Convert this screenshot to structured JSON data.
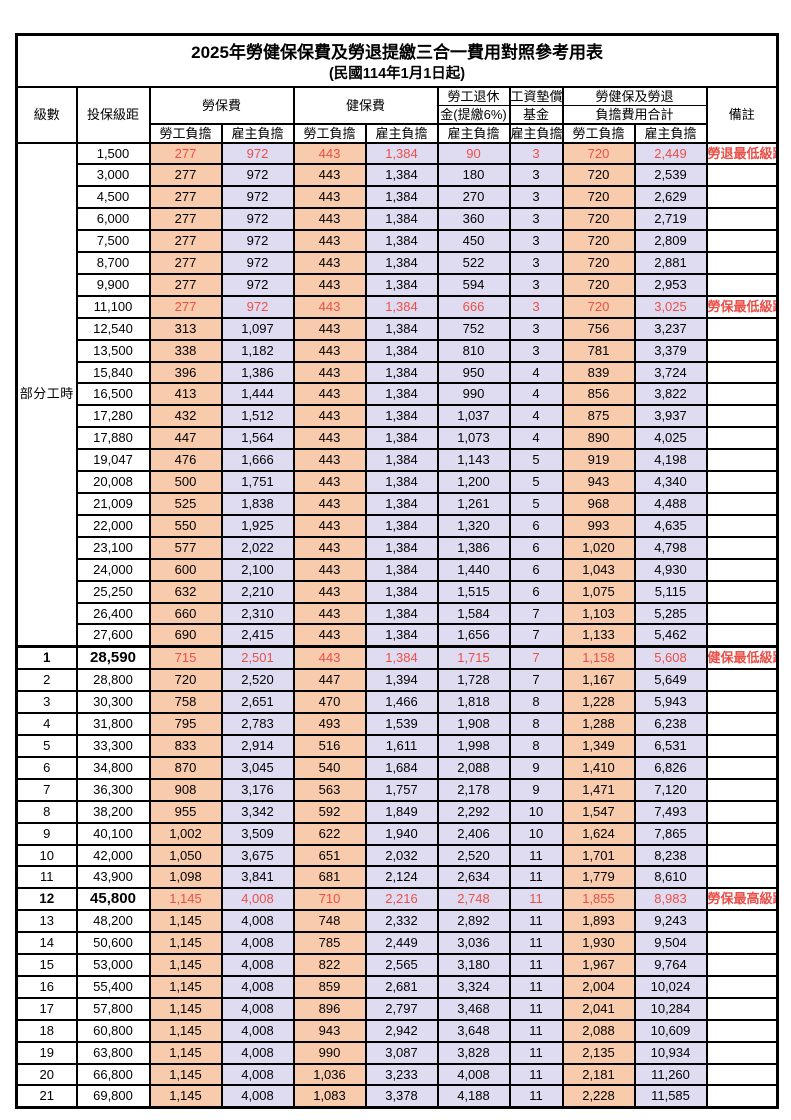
{
  "title": "2025年勞健保保費及勞退提繳三合一費用對照參考用表",
  "subtitle": "(民國114年1月1日起)",
  "colors": {
    "employee_bg": "#F8CBAD",
    "employer_bg": "#DFDCF1",
    "highlight_red": "#EA4F48",
    "border": "#000000"
  },
  "header": {
    "level": "級數",
    "bracket": "投保級距",
    "labor_fee": "勞保費",
    "health_fee": "健保費",
    "pension_line1": "勞工退休",
    "pension_line2": "金(提繳6%)",
    "wage_fund_line1": "工資墊償",
    "wage_fund_line2": "基金",
    "total_line1": "勞健保及勞退",
    "total_line2": "負擔費用合計",
    "remark": "備註",
    "employee": "勞工負擔",
    "employer": "雇主負擔",
    "part_time_label": "部分工時"
  },
  "chart_data": {
    "type": "table",
    "title": "2025年勞健保保費及勞退提繳三合一費用對照參考用表",
    "columns": [
      "級數",
      "投保級距",
      "勞保費-勞工負擔",
      "勞保費-雇主負擔",
      "健保費-勞工負擔",
      "健保費-雇主負擔",
      "勞工退休金(提繳6%)-雇主負擔",
      "工資墊償基金-雇主負擔",
      "合計-勞工負擔",
      "合計-雇主負擔",
      "備註"
    ]
  },
  "rows": [
    {
      "level": null,
      "bracket": "1,500",
      "values": [
        "277",
        "972",
        "443",
        "1,384",
        "90",
        "3",
        "720",
        "2,449"
      ],
      "red": true,
      "emph": false,
      "note": "勞退最低級距"
    },
    {
      "level": null,
      "bracket": "3,000",
      "values": [
        "277",
        "972",
        "443",
        "1,384",
        "180",
        "3",
        "720",
        "2,539"
      ],
      "red": false,
      "emph": false,
      "note": ""
    },
    {
      "level": null,
      "bracket": "4,500",
      "values": [
        "277",
        "972",
        "443",
        "1,384",
        "270",
        "3",
        "720",
        "2,629"
      ],
      "red": false,
      "emph": false,
      "note": ""
    },
    {
      "level": null,
      "bracket": "6,000",
      "values": [
        "277",
        "972",
        "443",
        "1,384",
        "360",
        "3",
        "720",
        "2,719"
      ],
      "red": false,
      "emph": false,
      "note": ""
    },
    {
      "level": null,
      "bracket": "7,500",
      "values": [
        "277",
        "972",
        "443",
        "1,384",
        "450",
        "3",
        "720",
        "2,809"
      ],
      "red": false,
      "emph": false,
      "note": ""
    },
    {
      "level": null,
      "bracket": "8,700",
      "values": [
        "277",
        "972",
        "443",
        "1,384",
        "522",
        "3",
        "720",
        "2,881"
      ],
      "red": false,
      "emph": false,
      "note": ""
    },
    {
      "level": null,
      "bracket": "9,900",
      "values": [
        "277",
        "972",
        "443",
        "1,384",
        "594",
        "3",
        "720",
        "2,953"
      ],
      "red": false,
      "emph": false,
      "note": ""
    },
    {
      "level": null,
      "bracket": "11,100",
      "values": [
        "277",
        "972",
        "443",
        "1,384",
        "666",
        "3",
        "720",
        "3,025"
      ],
      "red": true,
      "emph": false,
      "note": "勞保最低級距"
    },
    {
      "level": null,
      "bracket": "12,540",
      "values": [
        "313",
        "1,097",
        "443",
        "1,384",
        "752",
        "3",
        "756",
        "3,237"
      ],
      "red": false,
      "emph": false,
      "note": ""
    },
    {
      "level": null,
      "bracket": "13,500",
      "values": [
        "338",
        "1,182",
        "443",
        "1,384",
        "810",
        "3",
        "781",
        "3,379"
      ],
      "red": false,
      "emph": false,
      "note": ""
    },
    {
      "level": null,
      "bracket": "15,840",
      "values": [
        "396",
        "1,386",
        "443",
        "1,384",
        "950",
        "4",
        "839",
        "3,724"
      ],
      "red": false,
      "emph": false,
      "note": ""
    },
    {
      "level": null,
      "bracket": "16,500",
      "values": [
        "413",
        "1,444",
        "443",
        "1,384",
        "990",
        "4",
        "856",
        "3,822"
      ],
      "red": false,
      "emph": false,
      "note": ""
    },
    {
      "level": null,
      "bracket": "17,280",
      "values": [
        "432",
        "1,512",
        "443",
        "1,384",
        "1,037",
        "4",
        "875",
        "3,937"
      ],
      "red": false,
      "emph": false,
      "note": ""
    },
    {
      "level": null,
      "bracket": "17,880",
      "values": [
        "447",
        "1,564",
        "443",
        "1,384",
        "1,073",
        "4",
        "890",
        "4,025"
      ],
      "red": false,
      "emph": false,
      "note": ""
    },
    {
      "level": null,
      "bracket": "19,047",
      "values": [
        "476",
        "1,666",
        "443",
        "1,384",
        "1,143",
        "5",
        "919",
        "4,198"
      ],
      "red": false,
      "emph": false,
      "note": ""
    },
    {
      "level": null,
      "bracket": "20,008",
      "values": [
        "500",
        "1,751",
        "443",
        "1,384",
        "1,200",
        "5",
        "943",
        "4,340"
      ],
      "red": false,
      "emph": false,
      "note": ""
    },
    {
      "level": null,
      "bracket": "21,009",
      "values": [
        "525",
        "1,838",
        "443",
        "1,384",
        "1,261",
        "5",
        "968",
        "4,488"
      ],
      "red": false,
      "emph": false,
      "note": ""
    },
    {
      "level": null,
      "bracket": "22,000",
      "values": [
        "550",
        "1,925",
        "443",
        "1,384",
        "1,320",
        "6",
        "993",
        "4,635"
      ],
      "red": false,
      "emph": false,
      "note": ""
    },
    {
      "level": null,
      "bracket": "23,100",
      "values": [
        "577",
        "2,022",
        "443",
        "1,384",
        "1,386",
        "6",
        "1,020",
        "4,798"
      ],
      "red": false,
      "emph": false,
      "note": ""
    },
    {
      "level": null,
      "bracket": "24,000",
      "values": [
        "600",
        "2,100",
        "443",
        "1,384",
        "1,440",
        "6",
        "1,043",
        "4,930"
      ],
      "red": false,
      "emph": false,
      "note": ""
    },
    {
      "level": null,
      "bracket": "25,250",
      "values": [
        "632",
        "2,210",
        "443",
        "1,384",
        "1,515",
        "6",
        "1,075",
        "5,115"
      ],
      "red": false,
      "emph": false,
      "note": ""
    },
    {
      "level": null,
      "bracket": "26,400",
      "values": [
        "660",
        "2,310",
        "443",
        "1,384",
        "1,584",
        "7",
        "1,103",
        "5,285"
      ],
      "red": false,
      "emph": false,
      "note": ""
    },
    {
      "level": null,
      "bracket": "27,600",
      "values": [
        "690",
        "2,415",
        "443",
        "1,384",
        "1,656",
        "7",
        "1,133",
        "5,462"
      ],
      "red": false,
      "emph": false,
      "note": ""
    },
    {
      "level": "1",
      "bracket": "28,590",
      "values": [
        "715",
        "2,501",
        "443",
        "1,384",
        "1,715",
        "7",
        "1,158",
        "5,608"
      ],
      "red": true,
      "emph": true,
      "note": "健保最低級距"
    },
    {
      "level": "2",
      "bracket": "28,800",
      "values": [
        "720",
        "2,520",
        "447",
        "1,394",
        "1,728",
        "7",
        "1,167",
        "5,649"
      ],
      "red": false,
      "emph": false,
      "note": ""
    },
    {
      "level": "3",
      "bracket": "30,300",
      "values": [
        "758",
        "2,651",
        "470",
        "1,466",
        "1,818",
        "8",
        "1,228",
        "5,943"
      ],
      "red": false,
      "emph": false,
      "note": ""
    },
    {
      "level": "4",
      "bracket": "31,800",
      "values": [
        "795",
        "2,783",
        "493",
        "1,539",
        "1,908",
        "8",
        "1,288",
        "6,238"
      ],
      "red": false,
      "emph": false,
      "note": ""
    },
    {
      "level": "5",
      "bracket": "33,300",
      "values": [
        "833",
        "2,914",
        "516",
        "1,611",
        "1,998",
        "8",
        "1,349",
        "6,531"
      ],
      "red": false,
      "emph": false,
      "note": ""
    },
    {
      "level": "6",
      "bracket": "34,800",
      "values": [
        "870",
        "3,045",
        "540",
        "1,684",
        "2,088",
        "9",
        "1,410",
        "6,826"
      ],
      "red": false,
      "emph": false,
      "note": ""
    },
    {
      "level": "7",
      "bracket": "36,300",
      "values": [
        "908",
        "3,176",
        "563",
        "1,757",
        "2,178",
        "9",
        "1,471",
        "7,120"
      ],
      "red": false,
      "emph": false,
      "note": ""
    },
    {
      "level": "8",
      "bracket": "38,200",
      "values": [
        "955",
        "3,342",
        "592",
        "1,849",
        "2,292",
        "10",
        "1,547",
        "7,493"
      ],
      "red": false,
      "emph": false,
      "note": ""
    },
    {
      "level": "9",
      "bracket": "40,100",
      "values": [
        "1,002",
        "3,509",
        "622",
        "1,940",
        "2,406",
        "10",
        "1,624",
        "7,865"
      ],
      "red": false,
      "emph": false,
      "note": ""
    },
    {
      "level": "10",
      "bracket": "42,000",
      "values": [
        "1,050",
        "3,675",
        "651",
        "2,032",
        "2,520",
        "11",
        "1,701",
        "8,238"
      ],
      "red": false,
      "emph": false,
      "note": ""
    },
    {
      "level": "11",
      "bracket": "43,900",
      "values": [
        "1,098",
        "3,841",
        "681",
        "2,124",
        "2,634",
        "11",
        "1,779",
        "8,610"
      ],
      "red": false,
      "emph": false,
      "note": ""
    },
    {
      "level": "12",
      "bracket": "45,800",
      "values": [
        "1,145",
        "4,008",
        "710",
        "2,216",
        "2,748",
        "11",
        "1,855",
        "8,983"
      ],
      "red": true,
      "emph": true,
      "note": "勞保最高級距"
    },
    {
      "level": "13",
      "bracket": "48,200",
      "values": [
        "1,145",
        "4,008",
        "748",
        "2,332",
        "2,892",
        "11",
        "1,893",
        "9,243"
      ],
      "red": false,
      "emph": false,
      "note": ""
    },
    {
      "level": "14",
      "bracket": "50,600",
      "values": [
        "1,145",
        "4,008",
        "785",
        "2,449",
        "3,036",
        "11",
        "1,930",
        "9,504"
      ],
      "red": false,
      "emph": false,
      "note": ""
    },
    {
      "level": "15",
      "bracket": "53,000",
      "values": [
        "1,145",
        "4,008",
        "822",
        "2,565",
        "3,180",
        "11",
        "1,967",
        "9,764"
      ],
      "red": false,
      "emph": false,
      "note": ""
    },
    {
      "level": "16",
      "bracket": "55,400",
      "values": [
        "1,145",
        "4,008",
        "859",
        "2,681",
        "3,324",
        "11",
        "2,004",
        "10,024"
      ],
      "red": false,
      "emph": false,
      "note": ""
    },
    {
      "level": "17",
      "bracket": "57,800",
      "values": [
        "1,145",
        "4,008",
        "896",
        "2,797",
        "3,468",
        "11",
        "2,041",
        "10,284"
      ],
      "red": false,
      "emph": false,
      "note": ""
    },
    {
      "level": "18",
      "bracket": "60,800",
      "values": [
        "1,145",
        "4,008",
        "943",
        "2,942",
        "3,648",
        "11",
        "2,088",
        "10,609"
      ],
      "red": false,
      "emph": false,
      "note": ""
    },
    {
      "level": "19",
      "bracket": "63,800",
      "values": [
        "1,145",
        "4,008",
        "990",
        "3,087",
        "3,828",
        "11",
        "2,135",
        "10,934"
      ],
      "red": false,
      "emph": false,
      "note": ""
    },
    {
      "level": "20",
      "bracket": "66,800",
      "values": [
        "1,145",
        "4,008",
        "1,036",
        "3,233",
        "4,008",
        "11",
        "2,181",
        "11,260"
      ],
      "red": false,
      "emph": false,
      "note": ""
    },
    {
      "level": "21",
      "bracket": "69,800",
      "values": [
        "1,145",
        "4,008",
        "1,083",
        "3,378",
        "4,188",
        "11",
        "2,228",
        "11,585"
      ],
      "red": false,
      "emph": false,
      "note": ""
    }
  ]
}
